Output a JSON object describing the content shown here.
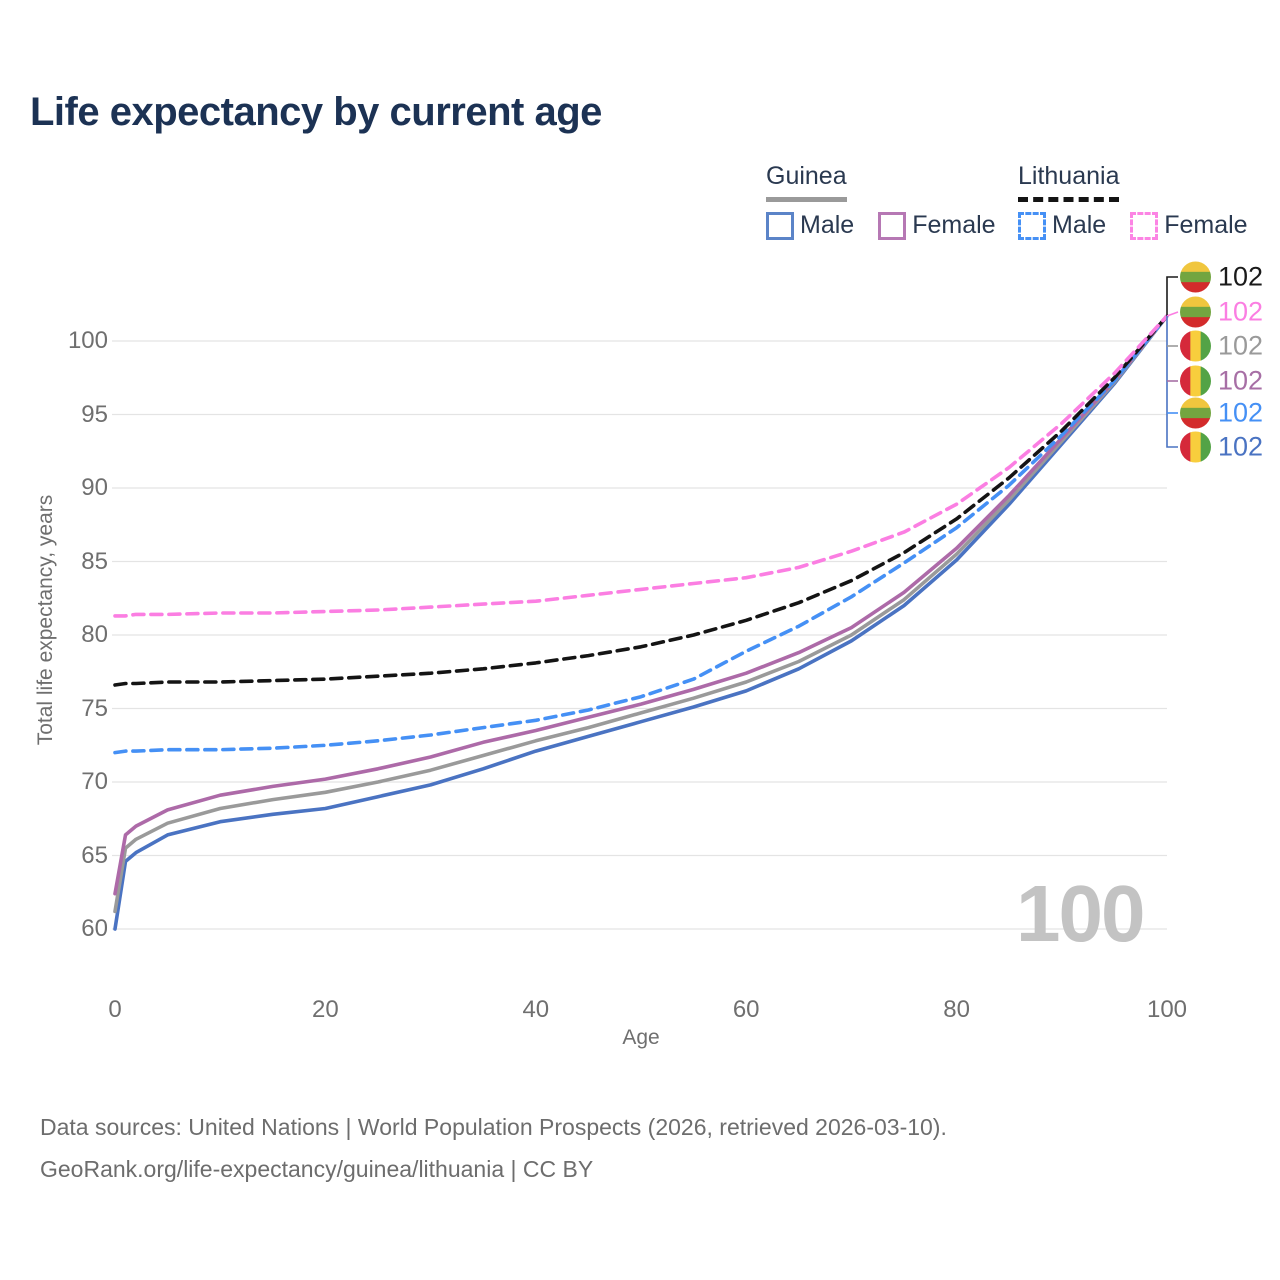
{
  "title": "Life expectancy by current age",
  "legend": {
    "groups": [
      {
        "name": "Guinea",
        "line_style": "solid",
        "underline_color": "#9a9a9a",
        "items": [
          {
            "label": "Male",
            "color": "#5b84c8",
            "dashed": false
          },
          {
            "label": "Female",
            "color": "#b678b4",
            "dashed": false
          }
        ]
      },
      {
        "name": "Lithuania",
        "line_style": "dashed",
        "underline_color": "#141414",
        "items": [
          {
            "label": "Male",
            "color": "#4590f5",
            "dashed": true
          },
          {
            "label": "Female",
            "color": "#fc84e4",
            "dashed": true
          }
        ]
      }
    ]
  },
  "axes": {
    "y": {
      "title": "Total life expectancy, years",
      "ticks": [
        60,
        65,
        70,
        75,
        80,
        85,
        90,
        95,
        100
      ],
      "range": [
        60,
        100
      ]
    },
    "x": {
      "title": "Age",
      "ticks": [
        0,
        20,
        40,
        60,
        80,
        100
      ],
      "range": [
        0,
        100
      ]
    }
  },
  "watermark": "100",
  "footer": {
    "line1": "Data sources: United Nations | World Population Prospects (2026, retrieved 2026-03-10).",
    "line2": "GeoRank.org/life-expectancy/guinea/lithuania | CC BY"
  },
  "flags": {
    "lithuania": {
      "orientation": "horizontal",
      "colors": [
        "#f0c63e",
        "#73a540",
        "#d32b2b"
      ]
    },
    "guinea": {
      "orientation": "vertical",
      "colors": [
        "#d5293a",
        "#f8ce3d",
        "#53a346"
      ]
    }
  },
  "chart_data": {
    "type": "line",
    "title": "Life expectancy by current age",
    "xlabel": "Age",
    "ylabel": "Total life expectancy, years",
    "xlim": [
      0,
      100
    ],
    "ylim": [
      60,
      100
    ],
    "grid": "horizontal",
    "legend_position": "top-right",
    "x": [
      0,
      1,
      2,
      5,
      10,
      15,
      20,
      25,
      30,
      35,
      40,
      45,
      50,
      55,
      60,
      65,
      70,
      75,
      80,
      85,
      90,
      95,
      100
    ],
    "series": [
      {
        "name": "Guinea Male",
        "country": "guinea",
        "sex": "male",
        "color": "#4a73c2",
        "dashed": false,
        "values": [
          60.0,
          64.6,
          65.2,
          66.4,
          67.3,
          67.8,
          68.2,
          69.0,
          69.8,
          70.9,
          72.1,
          73.1,
          74.1,
          75.1,
          76.2,
          77.7,
          79.6,
          82.0,
          85.1,
          88.9,
          93.0,
          97.1,
          101.7
        ]
      },
      {
        "name": "Guinea Both sexes",
        "country": "guinea",
        "sex": "both",
        "color": "#9a9a9a",
        "dashed": false,
        "values": [
          61.2,
          65.5,
          66.1,
          67.2,
          68.2,
          68.8,
          69.3,
          70.0,
          70.8,
          71.8,
          72.8,
          73.7,
          74.7,
          75.7,
          76.8,
          78.2,
          80.0,
          82.4,
          85.5,
          89.2,
          93.2,
          97.2,
          101.7
        ]
      },
      {
        "name": "Guinea Female",
        "country": "guinea",
        "sex": "female",
        "color": "#ad6aa8",
        "dashed": false,
        "values": [
          62.4,
          66.4,
          67.0,
          68.1,
          69.1,
          69.7,
          70.2,
          70.9,
          71.7,
          72.7,
          73.5,
          74.4,
          75.3,
          76.3,
          77.4,
          78.8,
          80.5,
          82.9,
          85.9,
          89.5,
          93.4,
          97.3,
          101.7
        ]
      },
      {
        "name": "Lithuania Male",
        "country": "lithuania",
        "sex": "male",
        "color": "#4590f5",
        "dashed": true,
        "values": [
          72.0,
          72.1,
          72.1,
          72.2,
          72.2,
          72.3,
          72.5,
          72.8,
          73.2,
          73.7,
          74.2,
          74.9,
          75.8,
          77.0,
          78.9,
          80.6,
          82.6,
          84.9,
          87.3,
          90.2,
          93.6,
          97.3,
          101.7
        ]
      },
      {
        "name": "Lithuania Both sexes",
        "country": "lithuania",
        "sex": "both",
        "color": "#141414",
        "dashed": true,
        "values": [
          76.6,
          76.7,
          76.7,
          76.8,
          76.8,
          76.9,
          77.0,
          77.2,
          77.4,
          77.7,
          78.1,
          78.6,
          79.2,
          80.0,
          81.0,
          82.2,
          83.7,
          85.6,
          87.9,
          90.7,
          93.9,
          97.5,
          101.7
        ]
      },
      {
        "name": "Lithuania Female",
        "country": "lithuania",
        "sex": "female",
        "color": "#fb7ee2",
        "dashed": true,
        "values": [
          81.3,
          81.3,
          81.4,
          81.4,
          81.5,
          81.5,
          81.6,
          81.7,
          81.9,
          82.1,
          82.3,
          82.7,
          83.1,
          83.5,
          83.9,
          84.6,
          85.7,
          87.0,
          88.9,
          91.4,
          94.4,
          97.8,
          101.7
        ]
      }
    ],
    "end_labels": [
      {
        "value": "102",
        "flag": "lithuania",
        "color": "#1a1a1a",
        "series": "Lithuania Both sexes",
        "y": 277
      },
      {
        "value": "102",
        "flag": "lithuania",
        "color": "#fb7ee2",
        "series": "Lithuania Female",
        "y": 312
      },
      {
        "value": "102",
        "flag": "guinea",
        "color": "#9a9a9a",
        "series": "Guinea Both sexes",
        "y": 346
      },
      {
        "value": "102",
        "flag": "guinea",
        "color": "#a76fa5",
        "series": "Guinea Female",
        "y": 381
      },
      {
        "value": "102",
        "flag": "lithuania",
        "color": "#4590f5",
        "series": "Lithuania Male",
        "y": 413
      },
      {
        "value": "102",
        "flag": "guinea",
        "color": "#4a73c2",
        "series": "Guinea Male",
        "y": 447
      }
    ]
  }
}
